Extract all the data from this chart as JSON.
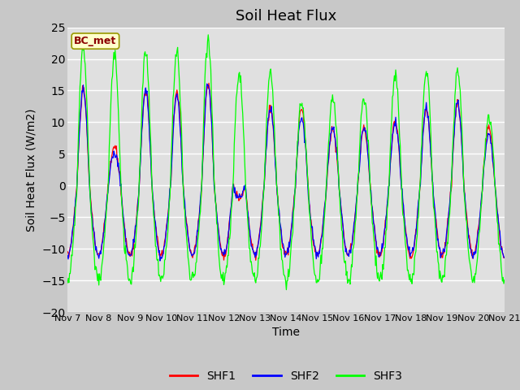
{
  "title": "Soil Heat Flux",
  "xlabel": "Time",
  "ylabel": "Soil Heat Flux (W/m2)",
  "ylim": [
    -20,
    25
  ],
  "yticks": [
    -20,
    -15,
    -10,
    -5,
    0,
    5,
    10,
    15,
    20,
    25
  ],
  "xtick_labels": [
    "Nov 7",
    "Nov 8",
    "Nov 9",
    "Nov 10",
    "Nov 11",
    "Nov 12",
    "Nov 13",
    "Nov 14",
    "Nov 15",
    "Nov 16",
    "Nov 17",
    "Nov 18",
    "Nov 19",
    "Nov 20",
    "Nov 21"
  ],
  "line_colors": [
    "red",
    "blue",
    "lime"
  ],
  "line_labels": [
    "SHF1",
    "SHF2",
    "SHF3"
  ],
  "annotation_text": "BC_met",
  "annotation_color": "#8B0000",
  "annotation_bg": "#ffffcc",
  "annotation_edge": "#999900",
  "fig_bg": "#c8c8c8",
  "ax_bg": "#e0e0e0",
  "grid_color": "white",
  "title_fontsize": 13,
  "label_fontsize": 10,
  "tick_fontsize": 8,
  "legend_fontsize": 10,
  "day_amps_shf1": [
    15,
    6,
    15,
    15,
    16,
    -2,
    12,
    12,
    9,
    9,
    10,
    12,
    13,
    9
  ],
  "day_amps_shf2": [
    15,
    5,
    15,
    14,
    16,
    -2,
    12,
    11,
    9,
    9,
    10,
    12,
    13,
    8
  ],
  "day_amps_shf3": [
    22,
    21,
    21,
    21,
    23,
    18,
    18,
    13,
    14,
    14,
    18,
    18,
    18,
    11
  ],
  "night_amp_shf1": 11,
  "night_amp_shf2": 11,
  "night_amp_shf3": 15
}
